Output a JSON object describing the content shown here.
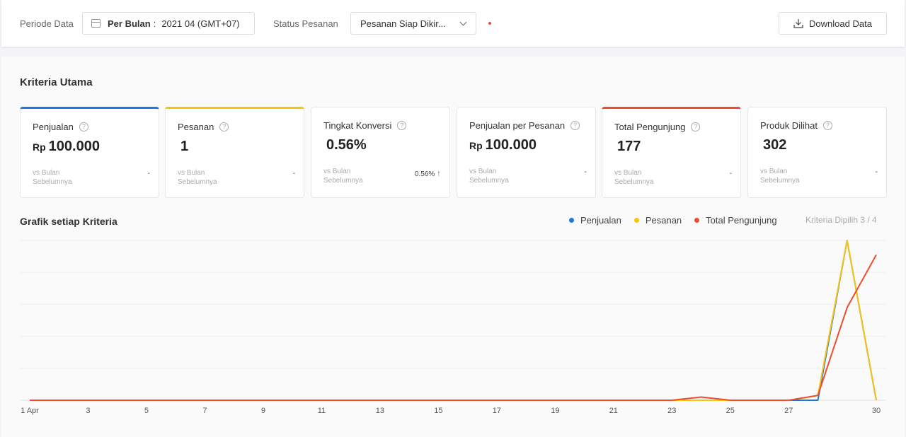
{
  "filters": {
    "period_label": "Periode Data",
    "period_type": "Per Bulan",
    "period_sep": ":",
    "period_value": "2021 04 (GMT+07)",
    "status_label": "Status Pesanan",
    "status_value": "Pesanan Siap Dikir..."
  },
  "download_label": "Download Data",
  "section_title": "Kriteria Utama",
  "cards": [
    {
      "title": "Penjualan",
      "currency": "Rp",
      "value": "100.000",
      "sub": "vs Bulan Sebelumnya",
      "change": "-",
      "selected": true,
      "color": "#2673dd"
    },
    {
      "title": "Pesanan",
      "currency": "",
      "value": "1",
      "sub": "vs Bulan Sebelumnya",
      "change": "-",
      "selected": true,
      "color": "#f6c40e"
    },
    {
      "title": "Tingkat Konversi",
      "currency": "",
      "value": "0.56%",
      "sub": "vs Bulan Sebelumnya",
      "change": "0.56%",
      "selected": false,
      "color": ""
    },
    {
      "title": "Penjualan per Pesanan",
      "currency": "Rp",
      "value": "100.000",
      "sub": "vs Bulan Sebelumnya",
      "change": "-",
      "selected": false,
      "color": ""
    },
    {
      "title": "Total Pengunjung",
      "currency": "",
      "value": "177",
      "sub": "vs Bulan Sebelumnya",
      "change": "-",
      "selected": true,
      "color": "#ee4d2d"
    },
    {
      "title": "Produk Dilihat",
      "currency": "",
      "value": "302",
      "sub": "vs Bulan Sebelumnya",
      "change": "-",
      "selected": false,
      "color": ""
    }
  ],
  "chart_title": "Grafik setiap Kriteria",
  "legend": [
    {
      "name": "Penjualan",
      "color": "#2673dd"
    },
    {
      "name": "Pesanan",
      "color": "#f6c40e"
    },
    {
      "name": "Total Pengunjung",
      "color": "#ee4d2d"
    }
  ],
  "selected_count": "Kriteria Dipilih 3 / 4",
  "chart_data": {
    "type": "line",
    "x": [
      1,
      2,
      3,
      4,
      5,
      6,
      7,
      8,
      9,
      10,
      11,
      12,
      13,
      14,
      15,
      16,
      17,
      18,
      19,
      20,
      21,
      22,
      23,
      24,
      25,
      26,
      27,
      28,
      29,
      30
    ],
    "x_tick_labels": [
      "1 Apr",
      "3",
      "5",
      "7",
      "9",
      "11",
      "13",
      "15",
      "17",
      "19",
      "21",
      "23",
      "25",
      "27",
      "30"
    ],
    "x_tick_values": [
      1,
      3,
      5,
      7,
      9,
      11,
      13,
      15,
      17,
      19,
      21,
      23,
      25,
      27,
      30
    ],
    "series": [
      {
        "name": "Penjualan",
        "color": "#2673dd",
        "values": [
          0,
          0,
          0,
          0,
          0,
          0,
          0,
          0,
          0,
          0,
          0,
          0,
          0,
          0,
          0,
          0,
          0,
          0,
          0,
          0,
          0,
          0,
          0,
          0,
          0,
          0,
          0,
          0,
          1,
          0
        ]
      },
      {
        "name": "Pesanan",
        "color": "#f6c40e",
        "values": [
          0,
          0,
          0,
          0,
          0,
          0,
          0,
          0,
          0,
          0,
          0,
          0,
          0,
          0,
          0,
          0,
          0,
          0,
          0,
          0,
          0,
          0,
          0,
          0,
          0,
          0,
          0,
          0.03,
          1,
          0
        ]
      },
      {
        "name": "Total Pengunjung",
        "color": "#ee4d2d",
        "values": [
          0,
          0,
          0,
          0,
          0,
          0,
          0,
          0,
          0,
          0,
          0,
          0,
          0,
          0,
          0,
          0,
          0,
          0,
          0,
          0,
          0,
          0,
          0,
          0.02,
          0,
          0,
          0,
          0.03,
          0.58,
          0.91
        ]
      }
    ],
    "ylim": [
      0,
      1
    ],
    "grid": true
  }
}
